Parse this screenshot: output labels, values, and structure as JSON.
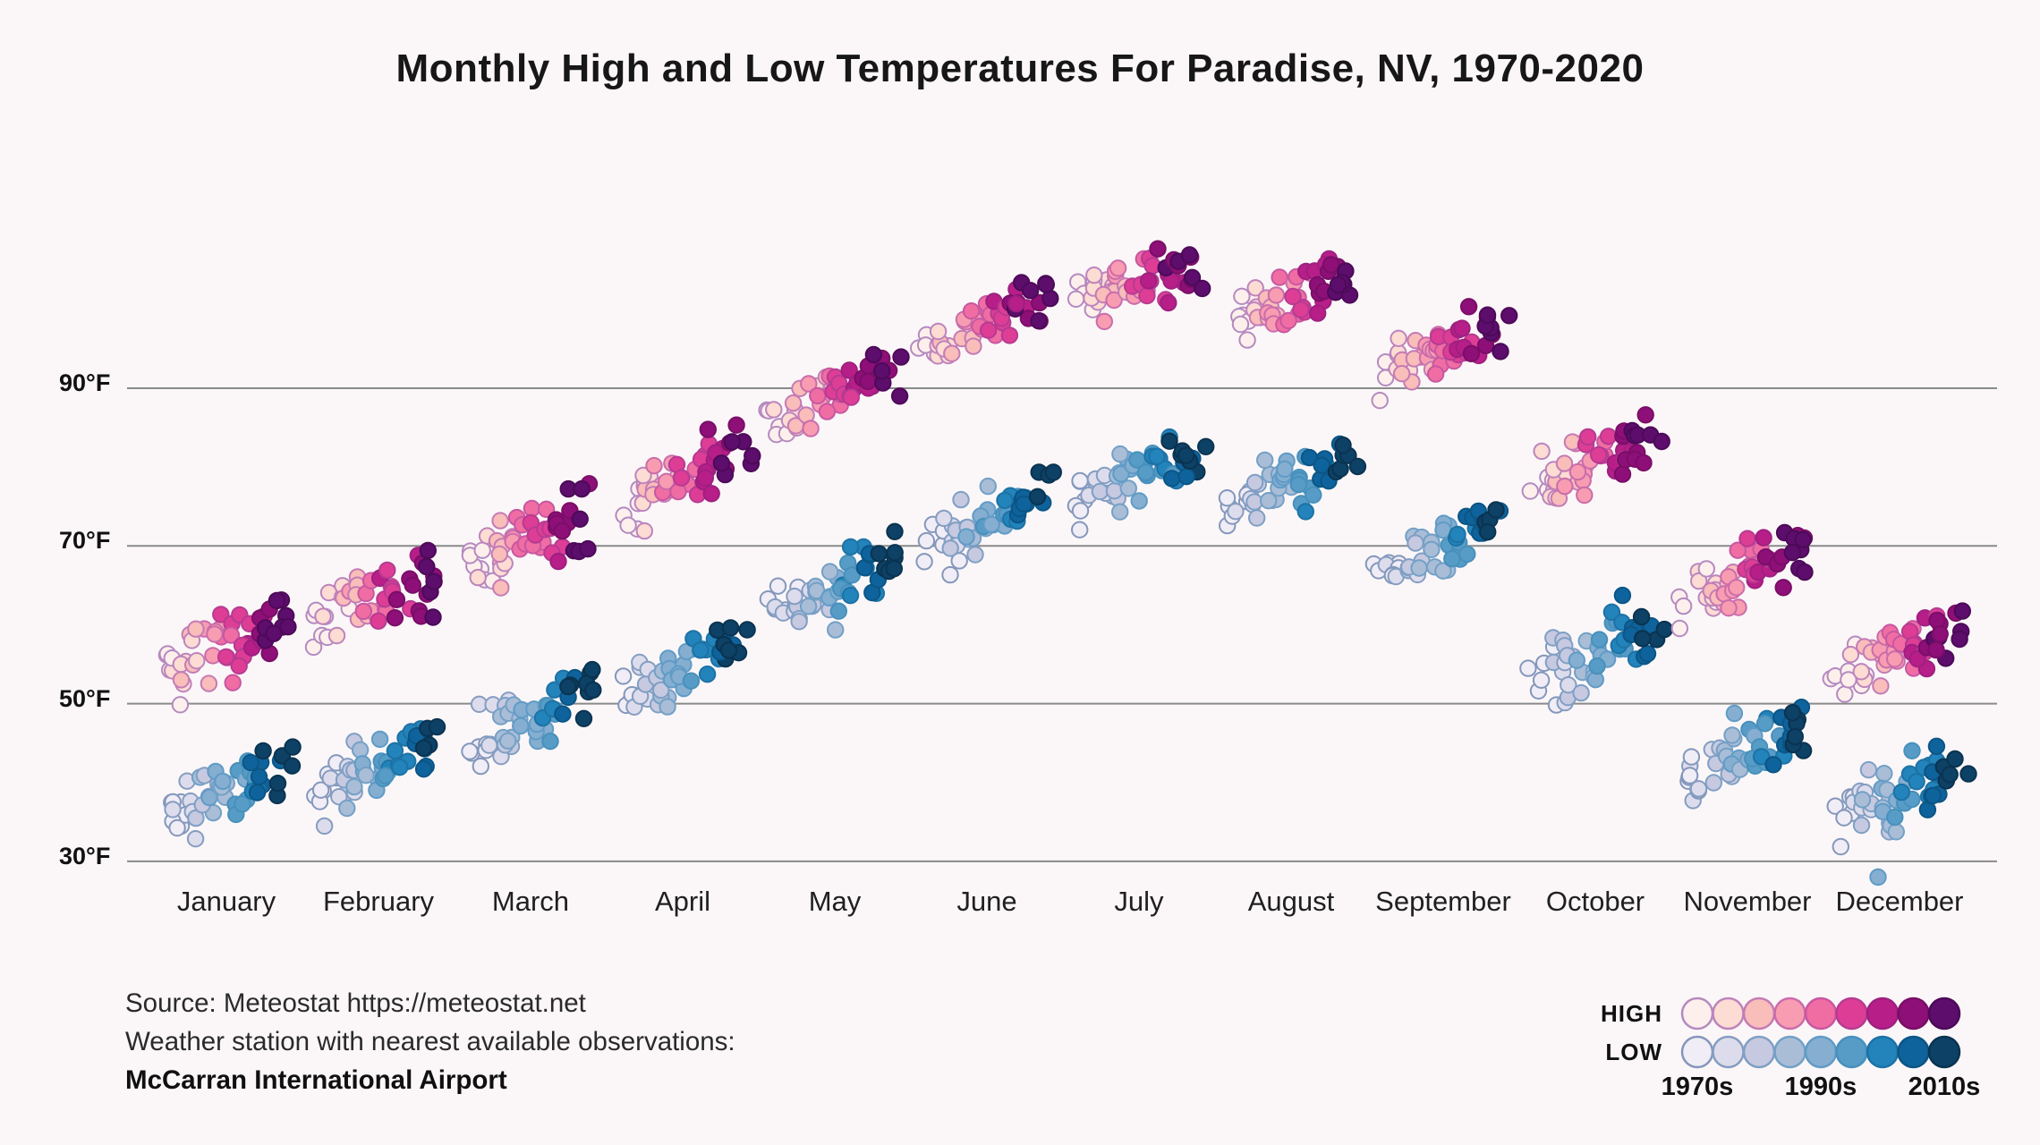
{
  "title": "Monthly High and Low Temperatures For Paradise, NV, 1970-2020",
  "source": {
    "line1": "Source: Meteostat https://meteostat.net",
    "line2": "Weather station with nearest available observations:",
    "line3": "McCarran International Airport"
  },
  "legend": {
    "high_label": "HIGH",
    "low_label": "LOW",
    "decade_labels": [
      "1970s",
      "1990s",
      "2010s"
    ],
    "high_colors": [
      "#fdf0ec",
      "#fcdcd3",
      "#f9bdba",
      "#f89cb1",
      "#f06da3",
      "#de3d96",
      "#b81e88",
      "#8e0f78",
      "#5d0d6c"
    ],
    "high_strokes": [
      "#b48ac0",
      "#bd84bd",
      "#c47bb5",
      "#ca6cab",
      "#c757a1",
      "#b53b91",
      "#9d2080",
      "#790e67",
      "#4c0a58"
    ],
    "low_colors": [
      "#f0edf6",
      "#dddcec",
      "#c6c9e0",
      "#a9bdd7",
      "#85aed0",
      "#569cc7",
      "#2383bb",
      "#0f639c",
      "#0d4166"
    ],
    "low_strokes": [
      "#8497bb",
      "#859dc1",
      "#7f9fc4",
      "#73a0c6",
      "#609bc6",
      "#4890bb",
      "#1d72a5",
      "#0b5585",
      "#0a3350"
    ]
  },
  "colors": {
    "background": "#fbf7f8",
    "gridline": "#8a8a8a",
    "text": "#1c1c1c"
  },
  "chart_data": {
    "type": "scatter",
    "title": "Monthly High and Low Temperatures For Paradise, NV, 1970-2020",
    "x_categories": [
      "January",
      "February",
      "March",
      "April",
      "May",
      "June",
      "July",
      "August",
      "September",
      "October",
      "November",
      "December"
    ],
    "y_unit": "°F",
    "ylim": [
      25,
      118
    ],
    "years_range": [
      1970,
      2020
    ],
    "points_per_series": 51,
    "encoding_note": "Two clusters per month: HIGH (pink-purple ramp) and LOW (blue ramp). Within each cluster points run left-to-right by year 1970-2020 and darken by decade; values in °F estimated from gridlines.",
    "grid": [
      {
        "value": 90,
        "label": "90°F"
      },
      {
        "value": 70,
        "label": "70°F"
      },
      {
        "value": 50,
        "label": "50°F"
      },
      {
        "value": 30,
        "label": "30°F"
      }
    ],
    "grid_on": true,
    "legend_position": "bottom-right",
    "months": [
      {
        "month": "January",
        "high": {
          "start": 54.5,
          "end": 61.0,
          "spread": 5.0
        },
        "low": {
          "start": 35.5,
          "end": 42.0,
          "spread": 5.5
        }
      },
      {
        "month": "February",
        "high": {
          "start": 59.5,
          "end": 66.0,
          "spread": 5.0
        },
        "low": {
          "start": 38.5,
          "end": 44.5,
          "spread": 5.0
        }
      },
      {
        "month": "March",
        "high": {
          "start": 67.0,
          "end": 74.0,
          "spread": 5.0
        },
        "low": {
          "start": 44.5,
          "end": 51.0,
          "spread": 5.0
        }
      },
      {
        "month": "April",
        "high": {
          "start": 74.5,
          "end": 82.0,
          "spread": 4.5
        },
        "low": {
          "start": 51.0,
          "end": 58.0,
          "spread": 5.0
        }
      },
      {
        "month": "May",
        "high": {
          "start": 86.0,
          "end": 92.0,
          "spread": 4.0
        },
        "low": {
          "start": 61.0,
          "end": 68.0,
          "spread": 5.0
        }
      },
      {
        "month": "June",
        "high": {
          "start": 95.0,
          "end": 101.5,
          "spread": 4.0
        },
        "low": {
          "start": 70.0,
          "end": 77.0,
          "spread": 5.0
        }
      },
      {
        "month": "July",
        "high": {
          "start": 100.5,
          "end": 106.0,
          "spread": 4.0
        },
        "low": {
          "start": 76.0,
          "end": 82.5,
          "spread": 4.5
        }
      },
      {
        "month": "August",
        "high": {
          "start": 99.0,
          "end": 104.5,
          "spread": 4.0
        },
        "low": {
          "start": 74.5,
          "end": 81.0,
          "spread": 4.5
        }
      },
      {
        "month": "September",
        "high": {
          "start": 91.5,
          "end": 98.0,
          "spread": 4.0
        },
        "low": {
          "start": 66.0,
          "end": 74.0,
          "spread": 4.0
        }
      },
      {
        "month": "October",
        "high": {
          "start": 77.0,
          "end": 84.0,
          "spread": 5.0
        },
        "low": {
          "start": 53.0,
          "end": 60.5,
          "spread": 5.0
        }
      },
      {
        "month": "November",
        "high": {
          "start": 63.0,
          "end": 69.5,
          "spread": 4.5
        },
        "low": {
          "start": 41.0,
          "end": 47.5,
          "spread": 5.0
        }
      },
      {
        "month": "December",
        "high": {
          "start": 54.0,
          "end": 60.5,
          "spread": 4.5
        },
        "low": {
          "start": 35.5,
          "end": 41.5,
          "spread": 5.0
        }
      }
    ],
    "outliers": [
      {
        "month": "December",
        "series": "low",
        "value": 28,
        "color_index": 4,
        "x_offset": -24
      }
    ]
  }
}
